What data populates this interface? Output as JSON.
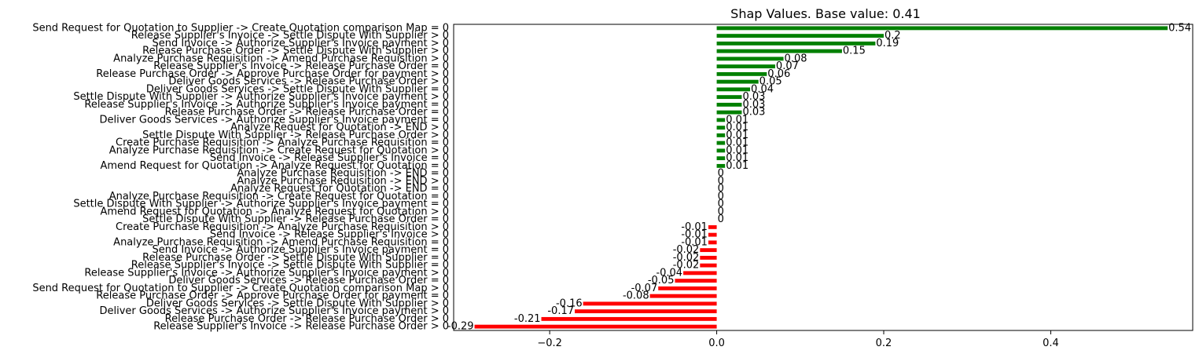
{
  "chart_data": {
    "type": "bar",
    "orientation": "horizontal",
    "title": "Shap Values. Base value: 0.41",
    "xlabel": "",
    "ylabel": "",
    "xlim": [
      -0.315,
      0.57
    ],
    "xticks": [
      -0.2,
      0.0,
      0.2,
      0.4
    ],
    "xtick_labels": [
      "−0.2",
      "0.0",
      "0.2",
      "0.4"
    ],
    "grid": false,
    "colors": {
      "positive": "#008000",
      "negative": "#ff0000"
    },
    "categories": [
      "Send Request for Quotation to Supplier -> Create Quotation comparison Map = 0",
      "Release Supplier's Invoice -> Settle Dispute With Supplier > 0",
      "Send Invoice -> Authorize Supplier's Invoice payment > 0",
      "Release Purchase Order -> Settle Dispute With Supplier > 0",
      "Analyze Purchase Requisition -> Amend Purchase Requisition > 0",
      "Release Supplier's Invoice -> Release Purchase Order = 0",
      "Release Purchase Order -> Approve Purchase Order for payment > 0",
      "Deliver Goods Services -> Release Purchase Order > 0",
      "Deliver Goods Services -> Settle Dispute With Supplier = 0",
      "Settle Dispute With Supplier -> Authorize Supplier's Invoice payment > 0",
      "Release Supplier's Invoice -> Authorize Supplier's Invoice payment = 0",
      "Release Purchase Order -> Release Purchase Order = 0",
      "Deliver Goods Services -> Authorize Supplier's Invoice payment = 0",
      "Analyze Request for Quotation -> END > 0",
      "Settle Dispute With Supplier -> Release Purchase Order > 0",
      "Create Purchase Requisition -> Analyze Purchase Requisition = 0",
      "Analyze Purchase Requisition -> Create Request for Quotation > 0",
      "Send Invoice -> Release Supplier's Invoice = 0",
      "Amend Request for Quotation -> Analyze Request for Quotation = 0",
      "Analyze Purchase Requisition -> END = 0",
      "Analyze Purchase Requisition -> END > 0",
      "Analyze Request for Quotation -> END = 0",
      "Analyze Purchase Requisition -> Create Request for Quotation = 0",
      "Settle Dispute With Supplier -> Authorize Supplier's Invoice payment = 0",
      "Amend Request for Quotation -> Analyze Request for Quotation > 0",
      "Settle Dispute With Supplier -> Release Purchase Order = 0",
      "Create Purchase Requisition -> Analyze Purchase Requisition > 0",
      "Send Invoice -> Release Supplier's Invoice > 0",
      "Analyze Purchase Requisition -> Amend Purchase Requisition = 0",
      "Send Invoice -> Authorize Supplier's Invoice payment = 0",
      "Release Purchase Order -> Settle Dispute With Supplier = 0",
      "Release Supplier's Invoice -> Settle Dispute With Supplier = 0",
      "Release Supplier's Invoice -> Authorize Supplier's Invoice payment > 0",
      "Deliver Goods Services -> Release Purchase Order = 0",
      "Send Request for Quotation to Supplier -> Create Quotation comparison Map > 0",
      "Release Purchase Order -> Approve Purchase Order for payment = 0",
      "Deliver Goods Services -> Settle Dispute With Supplier > 0",
      "Deliver Goods Services -> Authorize Supplier's Invoice payment > 0",
      "Release Purchase Order -> Release Purchase Order > 0",
      "Release Supplier's Invoice -> Release Purchase Order > 0"
    ],
    "values": [
      0.54,
      0.2,
      0.19,
      0.15,
      0.08,
      0.07,
      0.06,
      0.05,
      0.04,
      0.03,
      0.03,
      0.03,
      0.01,
      0.01,
      0.01,
      0.01,
      0.01,
      0.01,
      0.01,
      0,
      0,
      0,
      0,
      0,
      0,
      0,
      -0.01,
      -0.01,
      -0.01,
      -0.02,
      -0.02,
      -0.02,
      -0.04,
      -0.05,
      -0.07,
      -0.08,
      -0.16,
      -0.17,
      -0.21,
      -0.29
    ],
    "value_labels": [
      "0.54",
      "0.2",
      "0.19",
      "0.15",
      "0.08",
      "0.07",
      "0.06",
      "0.05",
      "0.04",
      "0.03",
      "0.03",
      "0.03",
      "0.01",
      "0.01",
      "0.01",
      "0.01",
      "0.01",
      "0.01",
      "0.01",
      "0",
      "0",
      "0",
      "0",
      "0",
      "0",
      "0",
      "-0.01",
      "-0.01",
      "-0.01",
      "-0.02",
      "-0.02",
      "-0.02",
      "-0.04",
      "-0.05",
      "-0.07",
      "-0.08",
      "-0.16",
      "-0.17",
      "-0.21",
      "-0.29"
    ]
  }
}
